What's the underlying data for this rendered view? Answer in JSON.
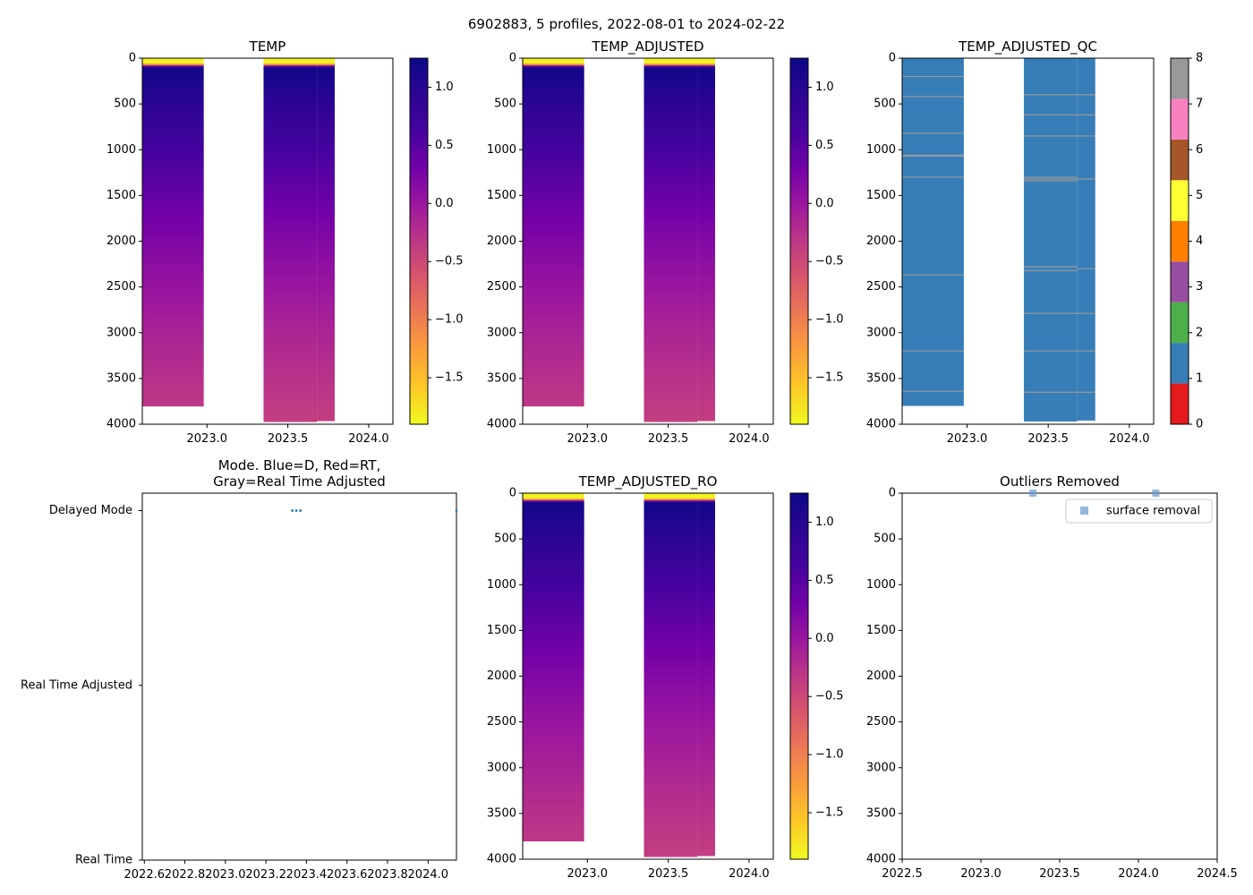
{
  "suptitle": "6902883, 5 profiles, 2022-08-01 to 2024-02-22",
  "chart_data": [
    {
      "id": "temp",
      "type": "heatmap",
      "title": "TEMP",
      "x_ticks": [
        2023.0,
        2023.5,
        2024.0
      ],
      "x_tick_labels": [
        "2023.0",
        "2023.5",
        "2024.0"
      ],
      "xlim": [
        2022.6,
        2024.15
      ],
      "ylim": [
        4000,
        0
      ],
      "y_ticks": [
        0,
        500,
        1000,
        1500,
        2000,
        2500,
        3000,
        3500,
        4000
      ],
      "y_tick_labels": [
        "0",
        "500",
        "1000",
        "1500",
        "2000",
        "2500",
        "3000",
        "3500",
        "4000"
      ],
      "colormap": "plasma_r",
      "clim": [
        -1.9,
        1.25
      ],
      "colorbar_ticks": [
        1.0,
        0.5,
        0.0,
        -0.5,
        -1.0,
        -1.5
      ],
      "colorbar_tick_labels": [
        "1.0",
        "0.5",
        "0.0",
        "−0.5",
        "−1.0",
        "−1.5"
      ],
      "columns": [
        {
          "x0": 2022.6,
          "x1": 2022.98,
          "bottom": 3800
        },
        {
          "x0": 2023.35,
          "x1": 2023.68,
          "bottom": 3970
        },
        {
          "x0": 2023.68,
          "x1": 2023.79,
          "bottom": 3960
        }
      ]
    },
    {
      "id": "temp_adjusted",
      "type": "heatmap",
      "title": "TEMP_ADJUSTED",
      "x_ticks": [
        2023.0,
        2023.5,
        2024.0
      ],
      "x_tick_labels": [
        "2023.0",
        "2023.5",
        "2024.0"
      ],
      "xlim": [
        2022.6,
        2024.15
      ],
      "ylim": [
        4000,
        0
      ],
      "y_ticks": [
        0,
        500,
        1000,
        1500,
        2000,
        2500,
        3000,
        3500,
        4000
      ],
      "y_tick_labels": [
        "0",
        "500",
        "1000",
        "1500",
        "2000",
        "2500",
        "3000",
        "3500",
        "4000"
      ],
      "colormap": "plasma_r",
      "clim": [
        -1.9,
        1.25
      ],
      "colorbar_ticks": [
        1.0,
        0.5,
        0.0,
        -0.5,
        -1.0,
        -1.5
      ],
      "colorbar_tick_labels": [
        "1.0",
        "0.5",
        "0.0",
        "−0.5",
        "−1.0",
        "−1.5"
      ],
      "columns": [
        {
          "x0": 2022.6,
          "x1": 2022.98,
          "bottom": 3800
        },
        {
          "x0": 2023.35,
          "x1": 2023.68,
          "bottom": 3970
        },
        {
          "x0": 2023.68,
          "x1": 2023.79,
          "bottom": 3960
        }
      ]
    },
    {
      "id": "temp_adjusted_qc",
      "type": "heatmap",
      "title": "TEMP_ADJUSTED_QC",
      "x_ticks": [
        2023.0,
        2023.5,
        2024.0
      ],
      "x_tick_labels": [
        "2023.0",
        "2023.5",
        "2024.0"
      ],
      "xlim": [
        2022.6,
        2024.15
      ],
      "ylim": [
        4000,
        0
      ],
      "y_ticks": [
        0,
        500,
        1000,
        1500,
        2000,
        2500,
        3000,
        3500,
        4000
      ],
      "y_tick_labels": [
        "0",
        "500",
        "1000",
        "1500",
        "2000",
        "2500",
        "3000",
        "3500",
        "4000"
      ],
      "qc_colors": [
        "#e41a1c",
        "#377eb8",
        "#4daf4a",
        "#984ea3",
        "#ff7f00",
        "#ffff33",
        "#a65628",
        "#f781bf",
        "#999999"
      ],
      "colorbar_ticks": [
        0,
        1,
        2,
        3,
        4,
        5,
        6,
        7,
        8
      ],
      "colorbar_tick_labels": [
        "0",
        "1",
        "2",
        "3",
        "4",
        "5",
        "6",
        "7",
        "8"
      ],
      "qc_value": 1,
      "columns": [
        {
          "x0": 2022.6,
          "x1": 2022.98,
          "bottom": 3800
        },
        {
          "x0": 2023.35,
          "x1": 2023.68,
          "bottom": 3970
        },
        {
          "x0": 2023.68,
          "x1": 2023.79,
          "bottom": 3960
        }
      ],
      "flag_lines": [
        {
          "col": 0,
          "depths": [
            200,
            420,
            820,
            1060,
            1070,
            1300,
            2370,
            3200,
            3640
          ]
        },
        {
          "col": 1,
          "depths": [
            400,
            620,
            850,
            1300,
            1320,
            1340,
            2280,
            2320,
            2790,
            3200,
            3650
          ]
        },
        {
          "col": 2,
          "depths": [
            400,
            620,
            850,
            1320,
            2300,
            2790,
            3200,
            3650
          ]
        }
      ]
    },
    {
      "id": "mode",
      "type": "scatter",
      "title": "Mode. Blue=D, Red=RT,\nGray=Real Time Adjusted",
      "title_lines": [
        "Mode. Blue=D, Red=RT,",
        "Gray=Real Time Adjusted"
      ],
      "x_ticks": [
        2022.6,
        2022.8,
        2023.0,
        2023.2,
        2023.4,
        2023.6,
        2023.8,
        2024.0
      ],
      "x_tick_labels": [
        "2022.6",
        "2022.8",
        "2023.0",
        "2023.2",
        "2023.4",
        "2023.6",
        "2023.8",
        "2024.0"
      ],
      "xlim": [
        2022.59,
        2024.14
      ],
      "y_ticks": [
        0,
        1,
        2
      ],
      "y_tick_labels": [
        "Real Time",
        "Real Time Adjusted",
        "Delayed Mode"
      ],
      "ylim": [
        0,
        2.1
      ],
      "points": [
        {
          "x": 2023.33,
          "y": 2
        },
        {
          "x": 2023.35,
          "y": 2
        },
        {
          "x": 2023.37,
          "y": 2
        },
        {
          "x": 2024.14,
          "y": 2
        }
      ]
    },
    {
      "id": "temp_adjusted_ro",
      "type": "heatmap",
      "title": "TEMP_ADJUSTED_RO",
      "x_ticks": [
        2023.0,
        2023.5,
        2024.0
      ],
      "x_tick_labels": [
        "2023.0",
        "2023.5",
        "2024.0"
      ],
      "xlim": [
        2022.6,
        2024.15
      ],
      "ylim": [
        4000,
        0
      ],
      "y_ticks": [
        0,
        500,
        1000,
        1500,
        2000,
        2500,
        3000,
        3500,
        4000
      ],
      "y_tick_labels": [
        "0",
        "500",
        "1000",
        "1500",
        "2000",
        "2500",
        "3000",
        "3500",
        "4000"
      ],
      "colormap": "plasma_r",
      "clim": [
        -1.9,
        1.25
      ],
      "colorbar_ticks": [
        1.0,
        0.5,
        0.0,
        -0.5,
        -1.0,
        -1.5
      ],
      "colorbar_tick_labels": [
        "1.0",
        "0.5",
        "0.0",
        "−0.5",
        "−1.0",
        "−1.5"
      ],
      "columns": [
        {
          "x0": 2022.6,
          "x1": 2022.98,
          "bottom": 3800
        },
        {
          "x0": 2023.35,
          "x1": 2023.68,
          "bottom": 3970
        },
        {
          "x0": 2023.68,
          "x1": 2023.79,
          "bottom": 3960
        }
      ]
    },
    {
      "id": "outliers",
      "type": "scatter",
      "title": "Outliers Removed",
      "x_ticks": [
        2022.5,
        2023.0,
        2023.5,
        2024.0,
        2024.5
      ],
      "x_tick_labels": [
        "2022.5",
        "2023.0",
        "2023.5",
        "2024.0",
        "2024.5"
      ],
      "xlim": [
        2022.5,
        2024.5
      ],
      "ylim": [
        4000,
        0
      ],
      "y_ticks": [
        0,
        500,
        1000,
        1500,
        2000,
        2500,
        3000,
        3500,
        4000
      ],
      "y_tick_labels": [
        "0",
        "500",
        "1000",
        "1500",
        "2000",
        "2500",
        "3000",
        "3500",
        "4000"
      ],
      "legend_label": "surface removal",
      "legend_loc": "upper right",
      "marker_color": "#6699cc",
      "points": [
        {
          "x": 2023.33,
          "y": 0
        },
        {
          "x": 2024.11,
          "y": 0
        }
      ]
    }
  ]
}
